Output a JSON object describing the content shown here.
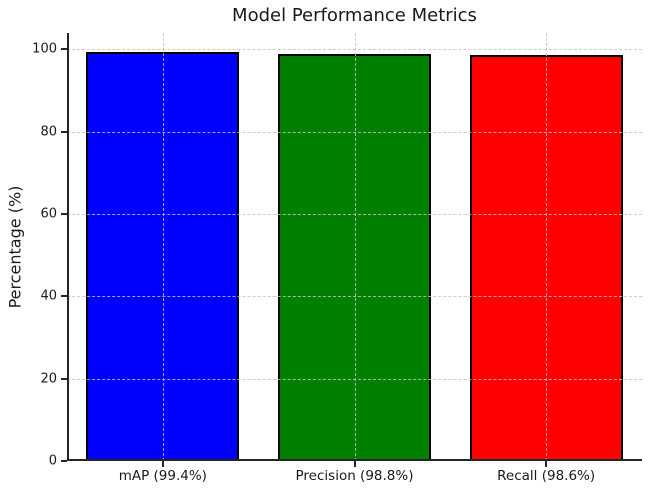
{
  "chart_data": {
    "type": "bar",
    "title": "Model Performance Metrics",
    "xlabel": "",
    "ylabel": "Percentage (%)",
    "categories": [
      "mAP (99.4%)",
      "Precision (98.8%)",
      "Recall (98.6%)"
    ],
    "values": [
      99.4,
      98.8,
      98.6
    ],
    "bar_colors": [
      "#0000ff",
      "#008000",
      "#ff0000"
    ],
    "bar_edge_color": "#000000",
    "yticks": [
      0,
      20,
      40,
      60,
      80,
      100
    ],
    "ylim": [
      0,
      104
    ],
    "grid": "dashed, both axes, drawn over bars",
    "legend": "none",
    "background_color": "#ffffff"
  }
}
